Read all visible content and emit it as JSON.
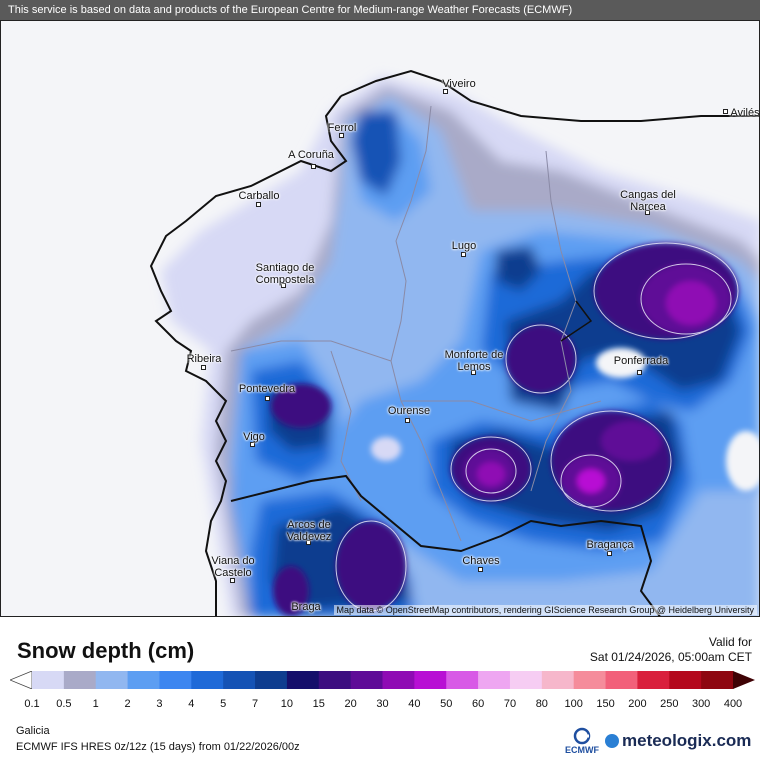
{
  "notice": "This service is based on data and products of the European Centre for Medium-range Weather Forecasts (ECMWF)",
  "map": {
    "attribution": "Map data © OpenStreetMap contributors, rendering GIScience Research Group @ Heidelberg University",
    "cities": [
      {
        "name": "Viveiro"
      },
      {
        "name": "Avilés"
      },
      {
        "name": "Ferrol"
      },
      {
        "name": "A Coruña"
      },
      {
        "name": "Carballo"
      },
      {
        "name": "Cangas del Narcea"
      },
      {
        "name": "Lugo"
      },
      {
        "name": "Santiago de Compostela"
      },
      {
        "name": "Ribeira"
      },
      {
        "name": "Monforte de Lemos"
      },
      {
        "name": "Ponferrada"
      },
      {
        "name": "Pontevedra"
      },
      {
        "name": "Ourense"
      },
      {
        "name": "Vigo"
      },
      {
        "name": "Arcos de Valdevez"
      },
      {
        "name": "Bragança"
      },
      {
        "name": "Chaves"
      },
      {
        "name": "Viana do Castelo"
      },
      {
        "name": "Braga"
      }
    ]
  },
  "title": "Snow depth (cm)",
  "valid_label": "Valid for",
  "valid_time": "Sat 01/24/2026, 05:00am CET",
  "legend": {
    "ticks": [
      "0.1",
      "0.5",
      "1",
      "2",
      "3",
      "4",
      "5",
      "7",
      "10",
      "15",
      "20",
      "30",
      "40",
      "50",
      "60",
      "70",
      "80",
      "100",
      "150",
      "200",
      "250",
      "300",
      "400"
    ],
    "colors": [
      "#d7d9f5",
      "#a9aac8",
      "#91b7f0",
      "#5d9ef2",
      "#3d86f0",
      "#1f6ad8",
      "#1553b5",
      "#0e3d8f",
      "#150f6b",
      "#3c0e80",
      "#5f0b97",
      "#8f0bb4",
      "#b80fd4",
      "#d85ae6",
      "#eea6f1",
      "#f6cdf3",
      "#f6b7cb",
      "#f58c9b",
      "#f2607a",
      "#d91f3c",
      "#b4081c",
      "#8e0610",
      "#6a040a",
      "#3f0205"
    ]
  },
  "footer": {
    "region": "Galicia",
    "model": "ECMWF IFS HRES 0z/12z (15 days) from  01/22/2026/00z",
    "ecmwf_logo": "ECMWF",
    "meteologix_logo": "meteologix.com"
  }
}
